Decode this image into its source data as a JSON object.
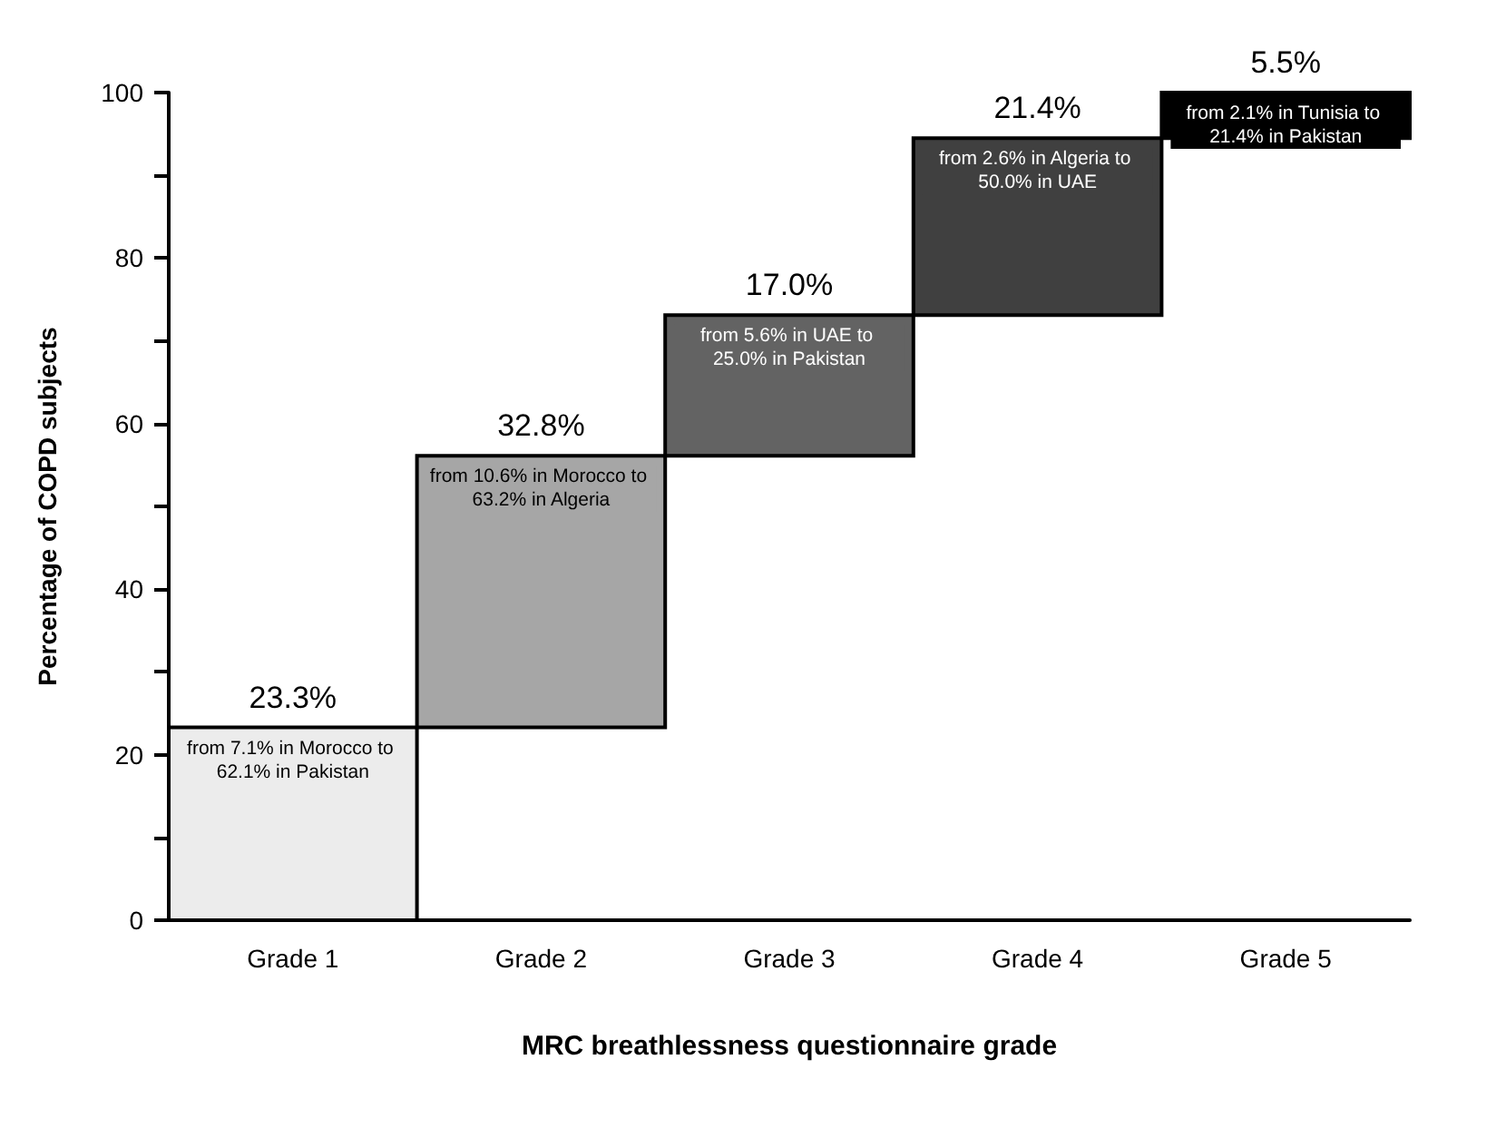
{
  "chart_data": {
    "type": "bar",
    "xlabel": "MRC breathlessness questionnaire grade",
    "ylabel": "Percentage of COPD subjects",
    "categories": [
      "Grade 1",
      "Grade 2",
      "Grade 3",
      "Grade 4",
      "Grade 5"
    ],
    "values": [
      23.3,
      32.8,
      17.0,
      21.4,
      5.5
    ],
    "base": [
      0,
      23.3,
      56.1,
      73.1,
      94.5
    ],
    "colors": [
      "#ececec",
      "#a6a6a6",
      "#636363",
      "#404040",
      "#000000"
    ],
    "value_labels": [
      "23.3%",
      "32.8%",
      "17.0%",
      "21.4%",
      "5.5%"
    ],
    "ylim": [
      0,
      100
    ],
    "yticks": [
      0,
      {
        "value": 10,
        "label": null
      },
      20,
      {
        "value": 30,
        "label": null
      },
      40,
      {
        "value": 50,
        "label": null
      },
      60,
      {
        "value": 70,
        "label": null
      },
      80,
      {
        "value": 90,
        "label": null
      },
      100
    ],
    "grid": false,
    "annotations": [
      "from 7.1% in Morocco to 62.1% in Pakistan",
      "from 10.6% in Morocco to 63.2% in Algeria",
      "from 5.6% in UAE to 25.0% in Pakistan",
      "from 2.6% in Algeria to 50.0% in UAE",
      "from 2.1% in Tunisia to 21.4% in Pakistan"
    ]
  }
}
